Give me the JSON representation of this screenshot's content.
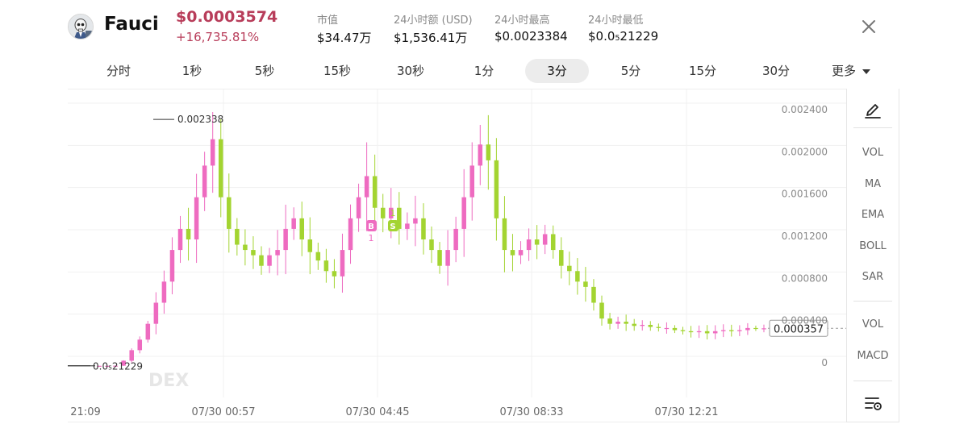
{
  "token": {
    "name": "Fauci",
    "avatar_icon": "skull-coin-icon",
    "price": "$0.0003574",
    "change": "+16,735.81%",
    "accent_color": "#b83d5a"
  },
  "stats": [
    {
      "label": "市值",
      "value": "$34.47万"
    },
    {
      "label": "24小时额 (USD)",
      "value": "$1,536.41万"
    },
    {
      "label": "24小时最高",
      "value": "$0.0023384"
    },
    {
      "label": "24小时最低",
      "value": "$0.0₅21229"
    }
  ],
  "intervals": [
    "分时",
    "1秒",
    "5秒",
    "15秒",
    "30秒",
    "1分",
    "3分",
    "5分",
    "15分",
    "30分"
  ],
  "active_interval": "3分",
  "more_label": "更多",
  "toolbar": {
    "draw_icon": "pen-draw-icon",
    "indicators_main": [
      "VOL",
      "MA",
      "EMA",
      "BOLL",
      "SAR"
    ],
    "indicators_sub": [
      "VOL",
      "MACD"
    ],
    "settings_icon": "indicator-settings-icon"
  },
  "chart_data": {
    "type": "candlestick",
    "colors": {
      "up": "#ee6bc0",
      "down": "#a3d431"
    },
    "y_ticks": [
      "0.002400",
      "0.002000",
      "0.001600",
      "0.001200",
      "0.000800",
      "0.000400",
      "0"
    ],
    "ylim": [
      0,
      0.0024
    ],
    "x_ticks": [
      "21:09",
      "07/30 00:57",
      "07/30 04:45",
      "07/30 08:33",
      "07/30 12:21"
    ],
    "current_price_label": "0.000357",
    "current_price": 0.000357,
    "high_annotation": {
      "label": "0.002338",
      "value": 0.002338
    },
    "low_annotation": {
      "label": "0.0₅21229",
      "value": 2.1229e-06
    },
    "trade_markers": [
      {
        "letter": "B",
        "count": "1",
        "color": "#ee6bc0"
      },
      {
        "letter": "S",
        "count": "1",
        "color": "#a3d431"
      }
    ],
    "watermark": "DEX",
    "candles_approx_close": [
      2e-06,
      2e-06,
      3e-06,
      5e-05,
      0.00015,
      0.00025,
      0.0004,
      0.0006,
      0.0008,
      0.0011,
      0.0013,
      0.0012,
      0.0016,
      0.0019,
      0.00215,
      0.0016,
      0.0013,
      0.00115,
      0.0011,
      0.00105,
      0.00095,
      0.00105,
      0.0011,
      0.0013,
      0.0014,
      0.0012,
      0.00108,
      0.001,
      0.0009,
      0.00085,
      0.0011,
      0.0014,
      0.0016,
      0.0018,
      0.0015,
      0.0014,
      0.0015,
      0.0013,
      0.00135,
      0.0014,
      0.0012,
      0.0011,
      0.00095,
      0.0011,
      0.0013,
      0.0016,
      0.0019,
      0.0021,
      0.00195,
      0.0014,
      0.0011,
      0.00105,
      0.0011,
      0.0012,
      0.00115,
      0.00125,
      0.0011,
      0.00095,
      0.0009,
      0.0008,
      0.00075,
      0.0006,
      0.00045,
      0.0004,
      0.00042,
      0.0004,
      0.00038,
      0.00039,
      0.00037,
      0.00036,
      0.00036,
      0.00034,
      0.00033,
      0.00032,
      0.00033,
      0.00031,
      0.00033,
      0.00034,
      0.00033,
      0.00034,
      0.00036,
      0.000355,
      0.000357
    ]
  }
}
